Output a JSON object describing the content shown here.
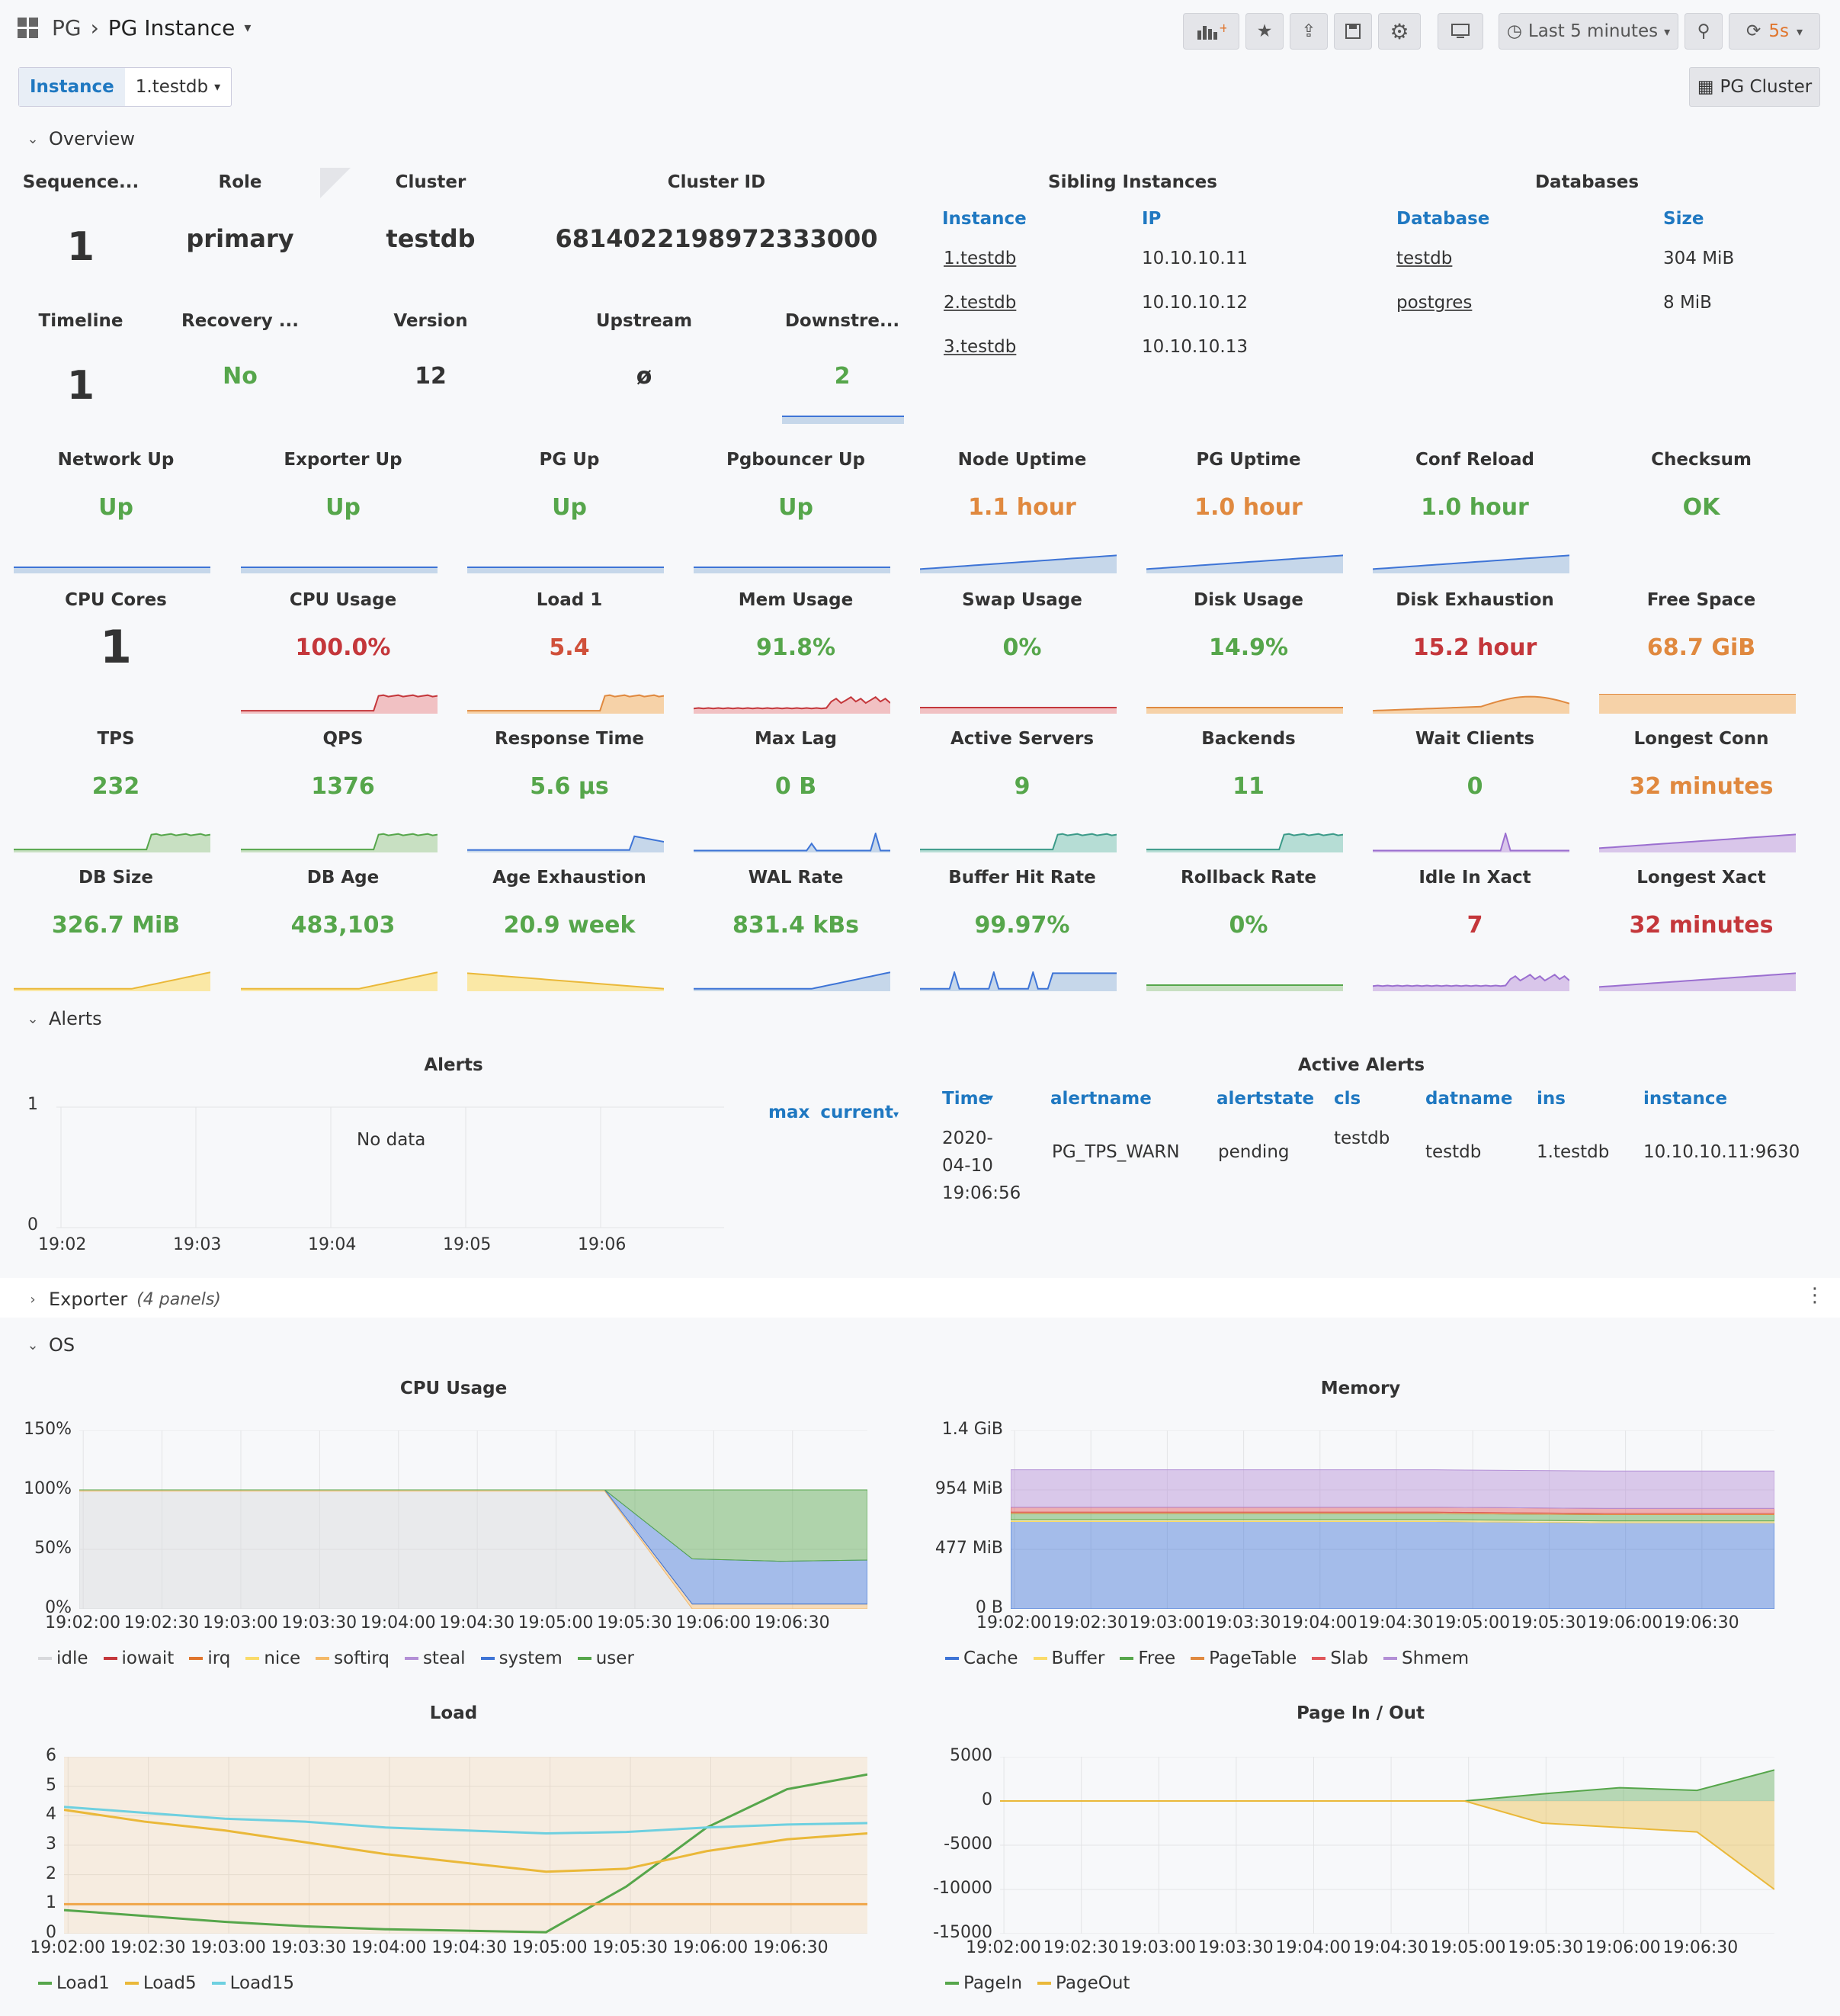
{
  "topbar": {
    "breadcrumb_folder": "PG",
    "breadcrumb_dashboard": "PG Instance",
    "time_range": "Last 5 minutes",
    "refresh_interval": "5s"
  },
  "variables": {
    "instance_label": "Instance",
    "instance_value": "1.testdb",
    "cluster_link": "PG Cluster"
  },
  "sections": {
    "overview": "Overview",
    "alerts": "Alerts",
    "exporter": "Exporter",
    "exporter_note": "(4 panels)",
    "os": "OS"
  },
  "overview": {
    "cells": [
      {
        "title": "Sequence...",
        "value": "1"
      },
      {
        "title": "Role",
        "value": "primary"
      },
      {
        "title": "Cluster",
        "value": "testdb"
      },
      {
        "title": "Cluster ID",
        "value": "6814022198972333000"
      },
      {
        "title": "Timeline",
        "value": "1"
      },
      {
        "title": "Recovery ...",
        "value": "No"
      },
      {
        "title": "Version",
        "value": "12"
      },
      {
        "title": "Upstream",
        "value": "ø"
      },
      {
        "title": "Downstre...",
        "value": "2"
      }
    ],
    "siblings": {
      "title": "Sibling Instances",
      "col_instance": "Instance",
      "col_ip": "IP",
      "rows": [
        {
          "instance": "1.testdb",
          "ip": "10.10.10.11"
        },
        {
          "instance": "2.testdb",
          "ip": "10.10.10.12"
        },
        {
          "instance": "3.testdb",
          "ip": "10.10.10.13"
        }
      ]
    },
    "databases": {
      "title": "Databases",
      "col_database": "Database",
      "col_size": "Size",
      "rows": [
        {
          "database": "testdb",
          "size": "304 MiB"
        },
        {
          "database": "postgres",
          "size": "8 MiB"
        }
      ]
    }
  },
  "stats": [
    {
      "title": "Network Up",
      "value": "Up",
      "color": "#56a64b",
      "spark": "flat",
      "fill": "#c6d7ea"
    },
    {
      "title": "Exporter Up",
      "value": "Up",
      "color": "#56a64b",
      "spark": "flat",
      "fill": "#c6d7ea"
    },
    {
      "title": "PG Up",
      "value": "Up",
      "color": "#56a64b",
      "spark": "flat",
      "fill": "#c6d7ea"
    },
    {
      "title": "Pgbouncer Up",
      "value": "Up",
      "color": "#56a64b",
      "spark": "flat",
      "fill": "#c6d7ea"
    },
    {
      "title": "Node Uptime",
      "value": "1.1 hour",
      "color": "#e0893f",
      "spark": "rise",
      "fill": "#c6d7ea"
    },
    {
      "title": "PG Uptime",
      "value": "1.0 hour",
      "color": "#e0893f",
      "spark": "rise",
      "fill": "#c6d7ea"
    },
    {
      "title": "Conf Reload",
      "value": "1.0 hour",
      "color": "#56a64b",
      "spark": "rise",
      "fill": "#c6d7ea"
    },
    {
      "title": "Checksum",
      "value": "OK",
      "color": "#56a64b",
      "spark": "none",
      "fill": ""
    },
    {
      "title": "CPU Cores",
      "value": "1",
      "color": "#333333",
      "spark": "none",
      "fill": ""
    },
    {
      "title": "CPU Usage",
      "value": "100.0%",
      "color": "#c4373b",
      "spark": "step",
      "fill": "#f1c1c3"
    },
    {
      "title": "Load 1",
      "value": "5.4",
      "color": "#d0503a",
      "spark": "step",
      "fill": "#f6d2a8"
    },
    {
      "title": "Mem Usage",
      "value": "91.8%",
      "color": "#56a64b",
      "spark": "wiggle",
      "fill": "#f1c1c3"
    },
    {
      "title": "Swap Usage",
      "value": "0%",
      "color": "#56a64b",
      "spark": "flat",
      "fill": "#f1c1c3"
    },
    {
      "title": "Disk Usage",
      "value": "14.9%",
      "color": "#56a64b",
      "spark": "flat",
      "fill": "#f6d2a8"
    },
    {
      "title": "Disk Exhaustion",
      "value": "15.2 hour",
      "color": "#c4373b",
      "spark": "hump",
      "fill": "#f6d2a8"
    },
    {
      "title": "Free Space",
      "value": "68.7 GiB",
      "color": "#e0893f",
      "spark": "full",
      "fill": "#f6d2a8"
    },
    {
      "title": "TPS",
      "value": "232",
      "color": "#56a64b",
      "spark": "step",
      "fill": "#c8e0c2"
    },
    {
      "title": "QPS",
      "value": "1376",
      "color": "#56a64b",
      "spark": "step",
      "fill": "#c8e0c2"
    },
    {
      "title": "Response Time",
      "value": "5.6 µs",
      "color": "#56a64b",
      "spark": "drop",
      "fill": "#c6d7ea"
    },
    {
      "title": "Max Lag",
      "value": "0 B",
      "color": "#56a64b",
      "spark": "spike",
      "fill": "#c6d7ea"
    },
    {
      "title": "Active Servers",
      "value": "9",
      "color": "#56a64b",
      "spark": "step",
      "fill": "#b6ddd5"
    },
    {
      "title": "Backends",
      "value": "11",
      "color": "#56a64b",
      "spark": "step",
      "fill": "#b6ddd5"
    },
    {
      "title": "Wait Clients",
      "value": "0",
      "color": "#56a64b",
      "spark": "spike1",
      "fill": "#d9c6ea"
    },
    {
      "title": "Longest Conn",
      "value": "32 minutes",
      "color": "#e0893f",
      "spark": "rise",
      "fill": "#d9c6ea"
    },
    {
      "title": "DB Size",
      "value": "326.7 MiB",
      "color": "#56a64b",
      "spark": "rise2",
      "fill": "#fae8a6"
    },
    {
      "title": "DB Age",
      "value": "483,103",
      "color": "#56a64b",
      "spark": "rise2",
      "fill": "#fae8a6"
    },
    {
      "title": "Age Exhaustion",
      "value": "20.9 week",
      "color": "#56a64b",
      "spark": "fall",
      "fill": "#fae8a6"
    },
    {
      "title": "WAL Rate",
      "value": "831.4 kBs",
      "color": "#56a64b",
      "spark": "rise2",
      "fill": "#c6d7ea"
    },
    {
      "title": "Buffer Hit Rate",
      "value": "99.97%",
      "color": "#56a64b",
      "spark": "spikes",
      "fill": "#c6d7ea"
    },
    {
      "title": "Rollback Rate",
      "value": "0%",
      "color": "#56a64b",
      "spark": "flat",
      "fill": "#c8e0c2"
    },
    {
      "title": "Idle In Xact",
      "value": "7",
      "color": "#c4373b",
      "spark": "wiggle",
      "fill": "#d9c6ea"
    },
    {
      "title": "Longest Xact",
      "value": "32 minutes",
      "color": "#c4373b",
      "spark": "rise",
      "fill": "#d9c6ea"
    }
  ],
  "alerts_panel": {
    "title": "Alerts",
    "no_data": "No data",
    "y_ticks": [
      "1",
      "0"
    ],
    "x_ticks": [
      "19:02",
      "19:03",
      "19:04",
      "19:05",
      "19:06"
    ],
    "legend_max": "max",
    "legend_current": "current"
  },
  "active_alerts": {
    "title": "Active Alerts",
    "columns": [
      "Time",
      "alertname",
      "alertstate",
      "cls",
      "datname",
      "ins",
      "instance"
    ],
    "rows": [
      {
        "time": [
          "2020-",
          "04-10",
          "19:06:56"
        ],
        "alertname": "PG_TPS_WARN",
        "alertstate": "pending",
        "cls": "testdb",
        "datname": "testdb",
        "ins": "1.testdb",
        "instance": "10.10.10.11:9630"
      }
    ]
  },
  "x_ticks_os": [
    "19:02:00",
    "19:02:30",
    "19:03:00",
    "19:03:30",
    "19:04:00",
    "19:04:30",
    "19:05:00",
    "19:05:30",
    "19:06:00",
    "19:06:30"
  ],
  "chart_data": [
    {
      "type": "area",
      "title": "CPU Usage",
      "y_ticks": [
        "150%",
        "100%",
        "50%",
        "0%"
      ],
      "ylim": [
        0,
        150
      ],
      "x": [
        "19:02:00",
        "19:02:30",
        "19:03:00",
        "19:03:30",
        "19:04:00",
        "19:04:30",
        "19:05:00",
        "19:05:30",
        "19:06:00",
        "19:06:30"
      ],
      "series": [
        {
          "name": "idle",
          "color": "#d8d9dc",
          "values": [
            99,
            99,
            99,
            99,
            99,
            99,
            99,
            0,
            0,
            0
          ]
        },
        {
          "name": "iowait",
          "color": "#c4373b",
          "values": [
            0,
            0,
            0,
            0,
            0,
            0,
            0,
            0,
            0,
            0
          ]
        },
        {
          "name": "irq",
          "color": "#e0752d",
          "values": [
            0,
            0,
            0,
            0,
            0,
            0,
            0,
            0,
            0,
            0
          ]
        },
        {
          "name": "nice",
          "color": "#fadb6a",
          "values": [
            0,
            0,
            0,
            0,
            0,
            0,
            0,
            0,
            0,
            0
          ]
        },
        {
          "name": "softirq",
          "color": "#f4b968",
          "values": [
            1,
            1,
            1,
            1,
            1,
            1,
            1,
            4,
            4,
            4
          ]
        },
        {
          "name": "steal",
          "color": "#b38fd6",
          "values": [
            0,
            0,
            0,
            0,
            0,
            0,
            0,
            0,
            0,
            0
          ]
        },
        {
          "name": "system",
          "color": "#3e74d6",
          "values": [
            0,
            0,
            0,
            0,
            0,
            0,
            0,
            38,
            36,
            37
          ]
        },
        {
          "name": "user",
          "color": "#56a64b",
          "values": [
            0,
            0,
            0,
            0,
            0,
            0,
            0,
            58,
            60,
            59
          ]
        }
      ],
      "legend": "bottom"
    },
    {
      "type": "area",
      "title": "Memory",
      "y_ticks": [
        "1.4 GiB",
        "954 MiB",
        "477 MiB",
        "0 B"
      ],
      "ylim": [
        0,
        1431
      ],
      "x": [
        "19:02:00",
        "19:02:30",
        "19:03:00",
        "19:03:30",
        "19:04:00",
        "19:04:30",
        "19:05:00",
        "19:05:30",
        "19:06:00",
        "19:06:30"
      ],
      "series": [
        {
          "name": "Cache",
          "color": "#3e74d6",
          "values": [
            700,
            700,
            700,
            700,
            700,
            700,
            695,
            690,
            690,
            690
          ]
        },
        {
          "name": "Buffer",
          "color": "#fadb6a",
          "values": [
            15,
            15,
            15,
            15,
            15,
            15,
            15,
            15,
            15,
            15
          ]
        },
        {
          "name": "Free",
          "color": "#56a64b",
          "values": [
            50,
            50,
            50,
            50,
            50,
            50,
            50,
            50,
            50,
            50
          ]
        },
        {
          "name": "PageTable",
          "color": "#e0893f",
          "values": [
            10,
            10,
            10,
            10,
            10,
            10,
            10,
            10,
            10,
            10
          ]
        },
        {
          "name": "Slab",
          "color": "#e0565a",
          "values": [
            40,
            40,
            40,
            40,
            40,
            40,
            40,
            40,
            40,
            40
          ]
        },
        {
          "name": "Shmem",
          "color": "#b38fd6",
          "values": [
            300,
            300,
            300,
            300,
            300,
            300,
            300,
            300,
            300,
            300
          ]
        }
      ],
      "legend": "bottom"
    },
    {
      "type": "line",
      "title": "Load",
      "y_ticks": [
        "6",
        "5",
        "4",
        "3",
        "2",
        "1",
        "0"
      ],
      "ylim": [
        0,
        6
      ],
      "x": [
        "19:02:00",
        "19:02:30",
        "19:03:00",
        "19:03:30",
        "19:04:00",
        "19:04:30",
        "19:05:00",
        "19:05:30",
        "19:06:00",
        "19:06:30",
        "19:06:50"
      ],
      "series": [
        {
          "name": "Load1",
          "color": "#56a64b",
          "values": [
            0.8,
            0.6,
            0.4,
            0.25,
            0.15,
            0.1,
            0.05,
            1.6,
            3.6,
            4.9,
            5.4
          ]
        },
        {
          "name": "Load5",
          "color": "#eab839",
          "values": [
            4.2,
            3.8,
            3.5,
            3.1,
            2.7,
            2.4,
            2.1,
            2.2,
            2.8,
            3.2,
            3.4
          ]
        },
        {
          "name": "Load15",
          "color": "#6ed0e0",
          "values": [
            4.3,
            4.1,
            3.9,
            3.8,
            3.6,
            3.5,
            3.4,
            3.45,
            3.6,
            3.7,
            3.75
          ]
        },
        {
          "name": "",
          "color": "#f0a548",
          "values": [
            1,
            1,
            1,
            1,
            1,
            1,
            1,
            1,
            1,
            1,
            1
          ]
        }
      ],
      "legend": "bottom"
    },
    {
      "type": "area",
      "title": "Page In / Out",
      "y_ticks": [
        "5000",
        "0",
        "-5000",
        "-10000",
        "-15000"
      ],
      "ylim": [
        -15000,
        5000
      ],
      "x": [
        "19:02:00",
        "19:02:30",
        "19:03:00",
        "19:03:30",
        "19:04:00",
        "19:04:30",
        "19:05:00",
        "19:05:30",
        "19:06:00",
        "19:06:30",
        "19:06:50"
      ],
      "series": [
        {
          "name": "PageIn",
          "color": "#56a64b",
          "values": [
            0,
            0,
            0,
            0,
            0,
            0,
            0,
            800,
            1500,
            1200,
            3500
          ]
        },
        {
          "name": "PageOut",
          "color": "#eab839",
          "values": [
            0,
            0,
            0,
            0,
            0,
            0,
            0,
            -2500,
            -3000,
            -3500,
            -10000
          ]
        }
      ],
      "legend": "bottom"
    }
  ]
}
